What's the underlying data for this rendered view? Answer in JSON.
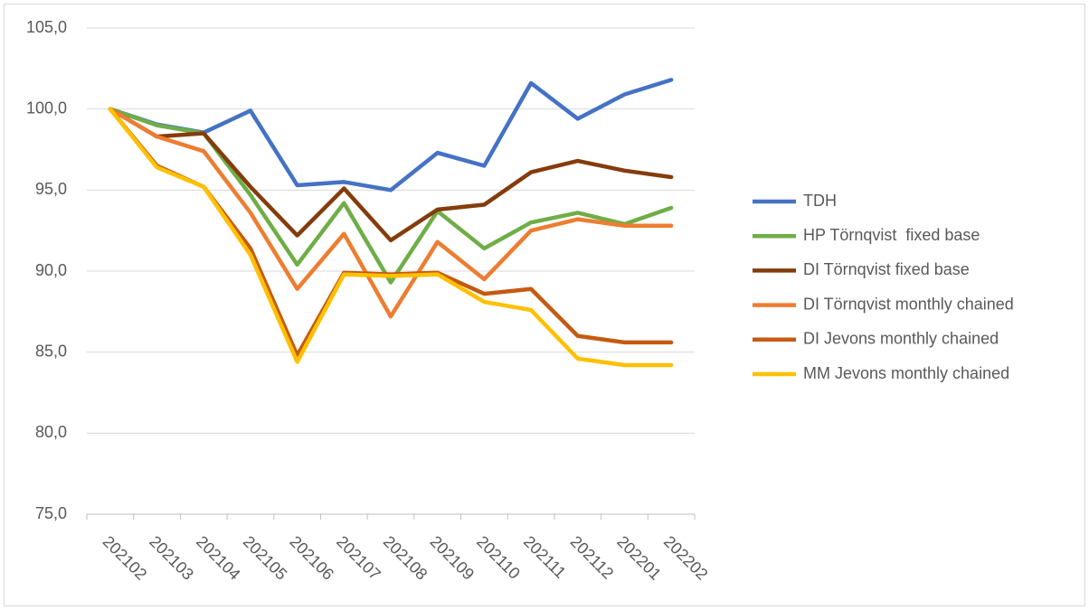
{
  "chart_data": {
    "type": "line",
    "categories": [
      "202102",
      "202103",
      "202104",
      "202105",
      "202106",
      "202107",
      "202108",
      "202109",
      "202110",
      "202111",
      "202112",
      "202201",
      "202202"
    ],
    "series": [
      {
        "name": "TDH",
        "color": "#4472C4",
        "values": [
          100,
          99.05,
          98.55,
          99.9,
          95.3,
          95.5,
          95.0,
          97.3,
          96.5,
          101.6,
          99.4,
          100.9,
          101.8
        ]
      },
      {
        "name": "HP Törnqvist  fixed base",
        "color": "#70AD47",
        "values": [
          100,
          99.0,
          98.5,
          94.7,
          90.4,
          94.2,
          89.3,
          93.7,
          91.4,
          93.0,
          93.6,
          92.9,
          93.9
        ]
      },
      {
        "name": "DI Törnqvist fixed base",
        "color": "#843C0C",
        "values": [
          100,
          98.3,
          98.5,
          95.2,
          92.2,
          95.1,
          91.9,
          93.8,
          94.1,
          96.1,
          96.8,
          96.2,
          95.8
        ]
      },
      {
        "name": "DI Törnqvist monthly chained",
        "color": "#ED7D31",
        "values": [
          100,
          98.3,
          97.4,
          93.6,
          88.9,
          92.3,
          87.2,
          91.8,
          89.5,
          92.5,
          93.2,
          92.8,
          92.8
        ]
      },
      {
        "name": "DI Jevons monthly chained",
        "color": "#C55A11",
        "values": [
          100,
          96.5,
          95.2,
          91.4,
          84.8,
          89.9,
          89.8,
          89.9,
          88.6,
          88.9,
          86.0,
          85.6,
          85.6
        ]
      },
      {
        "name": "MM Jevons monthly chained",
        "color": "#FFC000",
        "values": [
          100,
          96.4,
          95.2,
          91.0,
          84.4,
          89.8,
          89.7,
          89.8,
          88.1,
          87.6,
          84.6,
          84.2,
          84.2
        ]
      }
    ],
    "ylim": [
      75,
      105
    ],
    "yticks": [
      {
        "value": 75,
        "label": "75,0"
      },
      {
        "value": 80,
        "label": "80,0"
      },
      {
        "value": 85,
        "label": "85,0"
      },
      {
        "value": 90,
        "label": "90,0"
      },
      {
        "value": 95,
        "label": "95,0"
      },
      {
        "value": 100,
        "label": "100,0"
      },
      {
        "value": 105,
        "label": "105,0"
      }
    ],
    "grid": true,
    "legend": "right"
  }
}
